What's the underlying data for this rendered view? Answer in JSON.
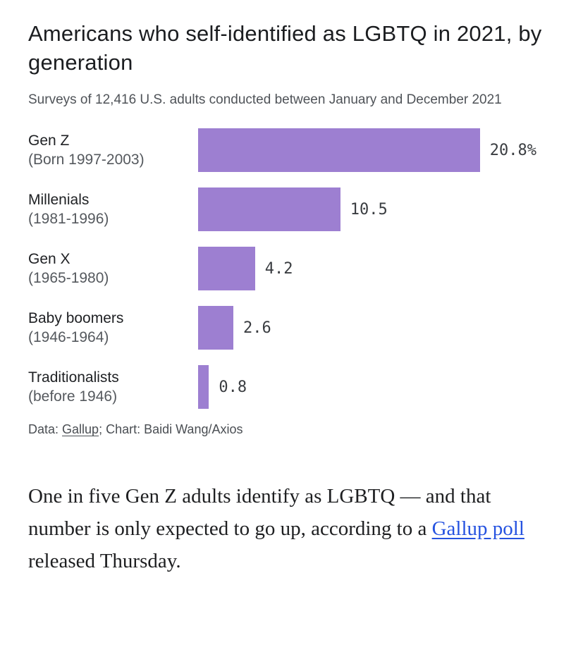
{
  "chart_data": {
    "type": "bar",
    "orientation": "horizontal",
    "title": "Americans who self-identified as LGBTQ in 2021, by generation",
    "subtitle": "Surveys of 12,416 U.S. adults conducted between January and December 2021",
    "categories": [
      "Gen Z",
      "Millenials",
      "Gen X",
      "Baby boomers",
      "Traditionalists"
    ],
    "sublabels": [
      "(Born 1997-2003)",
      "(1981-1996)",
      "(1965-1980)",
      "(1946-1964)",
      "(before 1946)"
    ],
    "values": [
      20.8,
      10.5,
      4.2,
      2.6,
      0.8
    ],
    "value_labels": [
      "20.8%",
      "10.5",
      "4.2",
      "2.6",
      "0.8"
    ],
    "bar_color": "#9d7fd1",
    "xlim": [
      0,
      26
    ],
    "legend": "none",
    "grid": "off"
  },
  "footer": {
    "prefix": "Data: ",
    "source_link": "Gallup",
    "suffix": "; Chart: Baidi Wang/Axios"
  },
  "article": {
    "text_before": "One in five Gen Z adults identify as LGBTQ — and that number is only expected to go up, according to a ",
    "link": "Gallup poll",
    "text_after": " released Thursday.",
    "link_color": "#2653e0"
  }
}
